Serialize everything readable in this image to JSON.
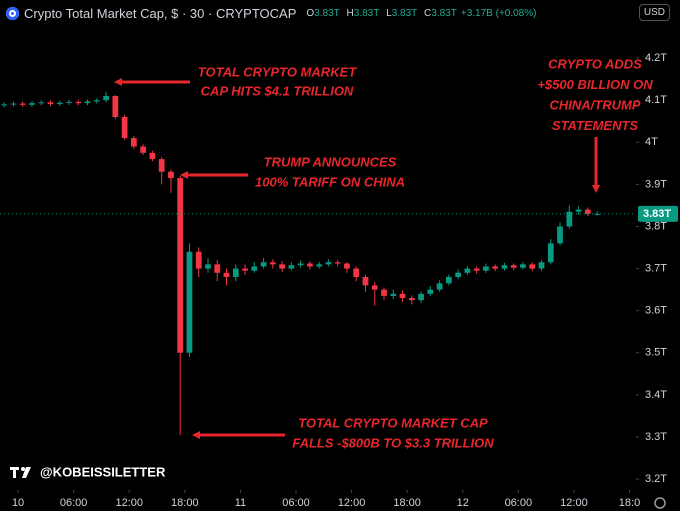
{
  "header": {
    "title": "Crypto Total Market Cap, $ · 30 · CRYPTOCAP",
    "ohlc": [
      {
        "key": "O",
        "value": "3.83T"
      },
      {
        "key": "H",
        "value": "3.83T"
      },
      {
        "key": "L",
        "value": "3.83T"
      },
      {
        "key": "C",
        "value": "3.83T"
      }
    ],
    "change": "+3.17B (+0.08%)",
    "currency": "USD"
  },
  "watermark": "@KOBEISSILETTER",
  "chart_data": {
    "type": "candlestick",
    "up_color": "#089981",
    "down_color": "#f23645",
    "x": [
      -1.5,
      -0.5,
      0.5,
      1.5,
      2.5,
      3.5,
      4.5,
      5.5,
      6.5,
      7.5,
      8.5,
      9.5,
      10.5,
      11.5,
      12.5,
      13.5,
      14.5,
      15.5,
      16.5,
      17.5,
      18.5,
      19.5,
      20.5,
      21.5,
      22.5,
      23.5,
      24.5,
      25.5,
      26.5,
      27.5,
      28.5,
      29.5,
      30.5,
      31.5,
      32.5,
      33.5,
      34.5,
      35.5,
      36.5,
      37.5,
      38.5,
      39.5,
      40.5,
      41.5,
      42.5,
      43.5,
      44.5,
      45.5,
      46.5,
      47.5,
      48.5,
      49.5,
      50.5,
      51.5,
      52.5,
      53.5,
      54.5,
      55.5,
      56.5,
      57.5,
      58.5,
      59.5,
      60.5,
      61.5,
      62.5
    ],
    "open": [
      4.088,
      4.09,
      4.092,
      4.089,
      4.093,
      4.095,
      4.091,
      4.094,
      4.096,
      4.093,
      4.097,
      4.1,
      4.11,
      4.06,
      4.01,
      3.99,
      3.975,
      3.96,
      3.93,
      3.915,
      3.5,
      3.74,
      3.7,
      3.71,
      3.69,
      3.68,
      3.7,
      3.695,
      3.705,
      3.715,
      3.71,
      3.7,
      3.708,
      3.712,
      3.705,
      3.71,
      3.715,
      3.712,
      3.7,
      3.68,
      3.66,
      3.65,
      3.635,
      3.64,
      3.63,
      3.625,
      3.64,
      3.65,
      3.665,
      3.68,
      3.69,
      3.7,
      3.695,
      3.705,
      3.7,
      3.708,
      3.702,
      3.71,
      3.7,
      3.715,
      3.76,
      3.8,
      3.835,
      3.84,
      3.83
    ],
    "high": [
      4.095,
      4.097,
      4.097,
      4.098,
      4.1,
      4.1,
      4.099,
      4.101,
      4.101,
      4.102,
      4.105,
      4.12,
      4.112,
      4.065,
      4.015,
      3.995,
      3.98,
      3.965,
      3.935,
      3.92,
      3.76,
      3.75,
      3.725,
      3.72,
      3.7,
      3.71,
      3.71,
      3.715,
      3.725,
      3.722,
      3.718,
      3.715,
      3.72,
      3.718,
      3.716,
      3.722,
      3.72,
      3.716,
      3.705,
      3.685,
      3.668,
      3.655,
      3.65,
      3.648,
      3.636,
      3.645,
      3.658,
      3.672,
      3.686,
      3.698,
      3.706,
      3.705,
      3.712,
      3.71,
      3.714,
      3.712,
      3.716,
      3.715,
      3.72,
      3.77,
      3.81,
      3.85,
      3.848,
      3.845,
      3.836
    ],
    "low": [
      4.083,
      4.085,
      4.084,
      4.084,
      4.088,
      4.086,
      4.086,
      4.089,
      4.088,
      4.088,
      4.092,
      4.095,
      4.055,
      4.005,
      3.985,
      3.97,
      3.955,
      3.9,
      3.88,
      3.305,
      3.49,
      3.68,
      3.69,
      3.67,
      3.66,
      3.67,
      3.685,
      3.69,
      3.7,
      3.7,
      3.692,
      3.695,
      3.702,
      3.698,
      3.7,
      3.705,
      3.705,
      3.69,
      3.67,
      3.645,
      3.612,
      3.625,
      3.628,
      3.62,
      3.615,
      3.618,
      3.635,
      3.645,
      3.66,
      3.675,
      3.685,
      3.688,
      3.69,
      3.694,
      3.695,
      3.696,
      3.698,
      3.694,
      3.695,
      3.71,
      3.755,
      3.795,
      3.828,
      3.825,
      3.826
    ],
    "close": [
      4.09,
      4.092,
      4.089,
      4.093,
      4.095,
      4.091,
      4.094,
      4.096,
      4.093,
      4.097,
      4.1,
      4.11,
      4.06,
      4.01,
      3.99,
      3.975,
      3.96,
      3.93,
      3.915,
      3.5,
      3.74,
      3.7,
      3.71,
      3.69,
      3.68,
      3.7,
      3.695,
      3.705,
      3.715,
      3.71,
      3.7,
      3.708,
      3.712,
      3.705,
      3.71,
      3.715,
      3.712,
      3.7,
      3.68,
      3.66,
      3.65,
      3.635,
      3.64,
      3.63,
      3.625,
      3.64,
      3.65,
      3.665,
      3.68,
      3.69,
      3.7,
      3.695,
      3.705,
      3.7,
      3.708,
      3.702,
      3.71,
      3.7,
      3.715,
      3.76,
      3.8,
      3.835,
      3.84,
      3.83,
      3.83
    ],
    "xlim": [
      -1.95,
      66.7
    ],
    "xticks": [
      {
        "value": 0,
        "label": "10"
      },
      {
        "value": 6,
        "label": "06:00"
      },
      {
        "value": 12,
        "label": "12:00"
      },
      {
        "value": 18,
        "label": "18:00"
      },
      {
        "value": 24,
        "label": "11"
      },
      {
        "value": 30,
        "label": "06:00"
      },
      {
        "value": 36,
        "label": "12:00"
      },
      {
        "value": 42,
        "label": "18:00"
      },
      {
        "value": 48,
        "label": "12"
      },
      {
        "value": 54,
        "label": "06:00"
      },
      {
        "value": 60,
        "label": "12:00"
      },
      {
        "value": 66,
        "label": "18:0"
      }
    ],
    "ylim": [
      3.174,
      4.338
    ],
    "yticks": [
      {
        "value": 4.2,
        "label": "4.2T"
      },
      {
        "value": 4.1,
        "label": "4.1T"
      },
      {
        "value": 4,
        "label": "4T"
      },
      {
        "value": 3.9,
        "label": "3.9T"
      },
      {
        "value": 3.8,
        "label": "3.8T"
      },
      {
        "value": 3.7,
        "label": "3.7T"
      },
      {
        "value": 3.6,
        "label": "3.6T"
      },
      {
        "value": 3.5,
        "label": "3.5T"
      },
      {
        "value": 3.4,
        "label": "3.4T"
      },
      {
        "value": 3.3,
        "label": "3.3T"
      },
      {
        "value": 3.2,
        "label": "3.2T"
      }
    ],
    "last_price": {
      "value": 3.83,
      "label": "3.83T"
    },
    "annotations": [
      {
        "lines": [
          "TOTAL CRYPTO MARKET",
          "CAP HITS $4.1 TRILLION"
        ]
      },
      {
        "lines": [
          "TRUMP ANNOUNCES",
          "100% TARIFF ON CHINA"
        ]
      },
      {
        "lines": [
          "CRYPTO ADDS",
          "+$500 BILLION ON",
          "CHINA/TRUMP",
          "STATEMENTS"
        ]
      },
      {
        "lines": [
          "TOTAL CRYPTO MARKET CAP",
          "FALLS -$800B TO $3.3 TRILLION"
        ]
      }
    ]
  }
}
